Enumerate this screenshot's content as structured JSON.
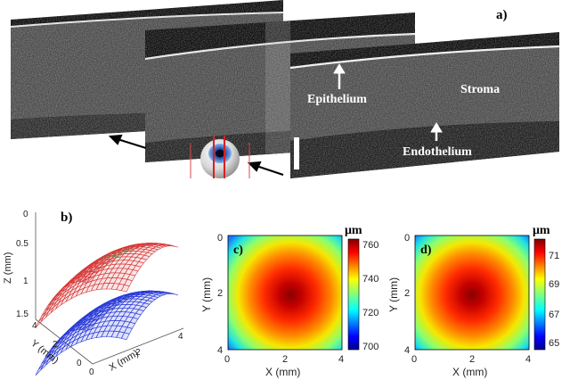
{
  "panels": {
    "a": {
      "tag": "a)",
      "labels": {
        "epithelium": "Epithelium",
        "stroma": "Stroma",
        "endothelium": "Endothelium"
      }
    },
    "b": {
      "tag": "b)",
      "axes": {
        "z_label": "Z (mm)",
        "y_label": "Y (mm)",
        "x_label": "X (mm)",
        "z_ticks": [
          "0",
          "0.5",
          "1",
          "1.5"
        ],
        "y_ticks": [
          "0",
          "2",
          "4"
        ],
        "x_ticks": [
          "0",
          "2",
          "4"
        ]
      },
      "surfaces": {
        "anterior_color": "#d83a3a",
        "anterior_tint": "#3aa84a",
        "posterior_color": "#2a3ad8"
      }
    },
    "c": {
      "tag": "c)",
      "xlabel": "X (mm)",
      "ylabel": "Y (mm)",
      "x_ticks": [
        "0",
        "2",
        "4"
      ],
      "y_ticks": [
        "4",
        "2",
        "0"
      ],
      "cbar_unit": "μm",
      "cbar_ticks": [
        "760",
        "740",
        "720",
        "700"
      ],
      "cbar_range": [
        700,
        765
      ],
      "center_value": 762,
      "corner_value": 702
    },
    "d": {
      "tag": "d)",
      "xlabel": "X (mm)",
      "ylabel": "Y (mm)",
      "x_ticks": [
        "0",
        "2",
        "4"
      ],
      "y_ticks": [
        "4",
        "2",
        "0"
      ],
      "cbar_unit": "μm",
      "cbar_ticks": [
        "71",
        "69",
        "67",
        "65"
      ],
      "cbar_range": [
        64.5,
        71.5
      ],
      "center_value": 71.5,
      "corner_value": 64.5
    }
  },
  "colormap": "jet"
}
